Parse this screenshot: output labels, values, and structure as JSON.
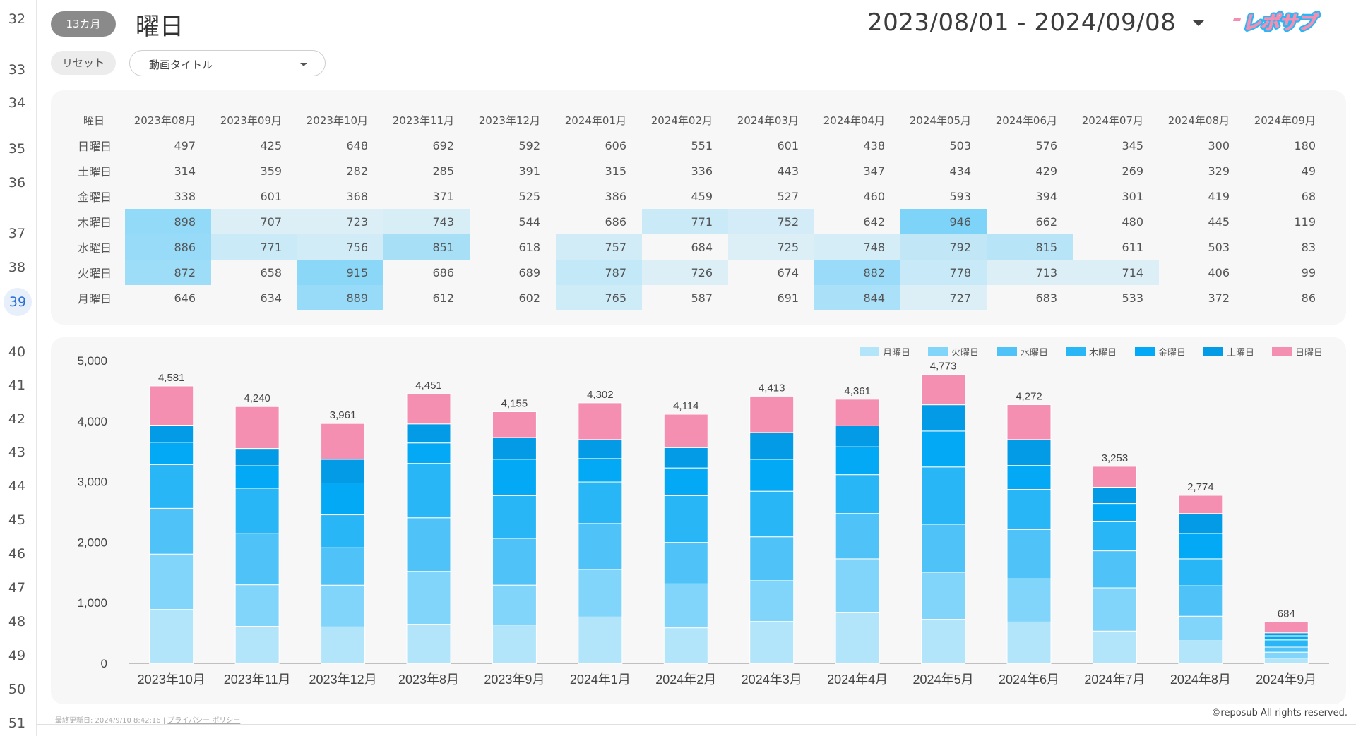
{
  "gutter": {
    "rows": [
      "32",
      "33",
      "34",
      "35",
      "36",
      "37",
      "38",
      "39",
      "40",
      "41",
      "42",
      "43",
      "44",
      "45",
      "46",
      "47",
      "48",
      "49",
      "50",
      "51"
    ],
    "active": "39"
  },
  "header": {
    "period_pill": "13カ月",
    "title": "曜日",
    "date_range": "2023/08/01 - 2024/09/08",
    "logo_text": "レポサブ",
    "reset_label": "リセット",
    "video_dropdown": "動画タイトル"
  },
  "heatmap": {
    "corner": "曜日",
    "months": [
      "2023年08月",
      "2023年09月",
      "2023年10月",
      "2023年11月",
      "2023年12月",
      "2024年01月",
      "2024年02月",
      "2024年03月",
      "2024年04月",
      "2024年05月",
      "2024年06月",
      "2024年07月",
      "2024年08月",
      "2024年09月"
    ],
    "rows": [
      {
        "day": "日曜日",
        "values": [
          497,
          425,
          648,
          692,
          592,
          606,
          551,
          601,
          438,
          503,
          576,
          345,
          300,
          180
        ]
      },
      {
        "day": "土曜日",
        "values": [
          314,
          359,
          282,
          285,
          391,
          315,
          336,
          443,
          347,
          434,
          429,
          269,
          329,
          49
        ]
      },
      {
        "day": "金曜日",
        "values": [
          338,
          601,
          368,
          371,
          525,
          386,
          459,
          527,
          460,
          593,
          394,
          301,
          419,
          68
        ]
      },
      {
        "day": "木曜日",
        "values": [
          898,
          707,
          723,
          743,
          544,
          686,
          771,
          752,
          642,
          946,
          662,
          480,
          445,
          119
        ]
      },
      {
        "day": "水曜日",
        "values": [
          886,
          771,
          756,
          851,
          618,
          757,
          684,
          725,
          748,
          792,
          815,
          611,
          503,
          83
        ]
      },
      {
        "day": "火曜日",
        "values": [
          872,
          658,
          915,
          686,
          689,
          787,
          726,
          674,
          882,
          778,
          713,
          714,
          406,
          99
        ]
      },
      {
        "day": "月曜日",
        "values": [
          646,
          634,
          889,
          612,
          602,
          765,
          587,
          691,
          844,
          727,
          683,
          533,
          372,
          86
        ]
      }
    ],
    "highlight_color": "#7dd3f8"
  },
  "chart_data": {
    "type": "bar",
    "stacked": true,
    "categories": [
      "2023年10月",
      "2023年11月",
      "2023年12月",
      "2023年8月",
      "2023年9月",
      "2024年1月",
      "2024年2月",
      "2024年3月",
      "2024年4月",
      "2024年5月",
      "2024年6月",
      "2024年7月",
      "2024年8月",
      "2024年9月"
    ],
    "series": [
      {
        "name": "月曜日",
        "color": "#b3e5fa",
        "values": [
          889,
          612,
          602,
          646,
          634,
          765,
          587,
          691,
          844,
          727,
          683,
          533,
          372,
          86
        ]
      },
      {
        "name": "火曜日",
        "color": "#81d4fa",
        "values": [
          915,
          686,
          689,
          872,
          658,
          787,
          726,
          674,
          882,
          778,
          713,
          714,
          406,
          99
        ]
      },
      {
        "name": "水曜日",
        "color": "#4fc3f7",
        "values": [
          756,
          851,
          618,
          886,
          771,
          757,
          684,
          725,
          748,
          792,
          815,
          611,
          503,
          83
        ]
      },
      {
        "name": "木曜日",
        "color": "#29b6f6",
        "values": [
          723,
          743,
          544,
          898,
          707,
          686,
          771,
          752,
          642,
          946,
          662,
          480,
          445,
          119
        ]
      },
      {
        "name": "金曜日",
        "color": "#03a9f4",
        "values": [
          368,
          371,
          525,
          338,
          601,
          386,
          459,
          527,
          460,
          593,
          394,
          301,
          419,
          68
        ]
      },
      {
        "name": "土曜日",
        "color": "#039be5",
        "values": [
          282,
          285,
          391,
          314,
          359,
          315,
          336,
          443,
          347,
          434,
          429,
          269,
          329,
          49
        ]
      },
      {
        "name": "日曜日",
        "color": "#f48fb1",
        "values": [
          648,
          692,
          592,
          497,
          425,
          606,
          551,
          601,
          438,
          503,
          576,
          345,
          300,
          180
        ]
      }
    ],
    "totals": [
      "4,581",
      "4,240",
      "3,961",
      "4,451",
      "4,155",
      "4,302",
      "4,114",
      "4,413",
      "4,361",
      "4,773",
      "4,272",
      "3,253",
      "2,774",
      "684"
    ],
    "y_ticks": [
      "5,000",
      "4,000",
      "3,000",
      "2,000",
      "1,000",
      "0"
    ],
    "ylim": [
      0,
      5000
    ],
    "legend_position": "top-right"
  },
  "footer": {
    "updated": "最終更新日: 2024/9/10 8:42:16",
    "privacy": "プライバシー ポリシー",
    "copyright": "©reposub All rights reserved."
  }
}
